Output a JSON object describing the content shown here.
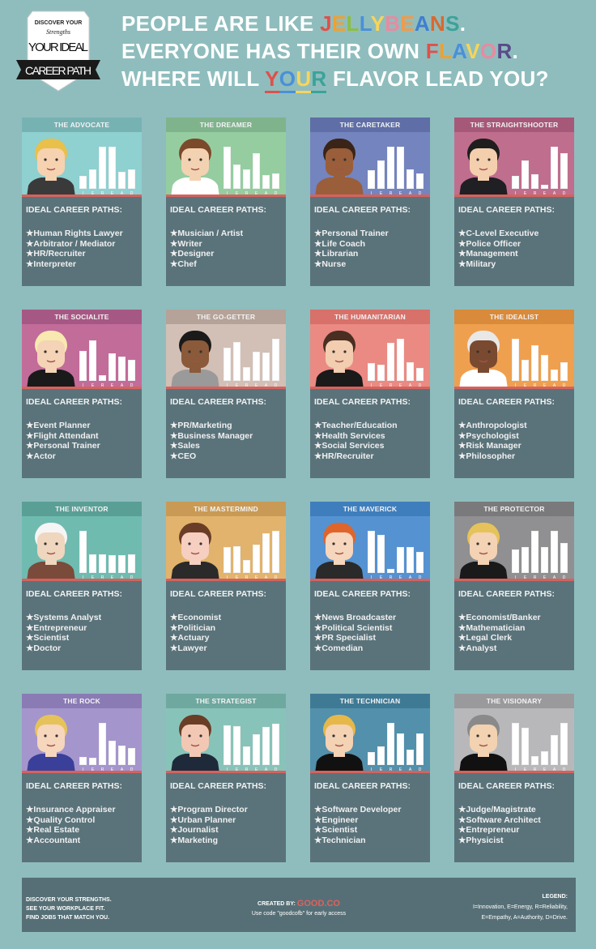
{
  "badge": {
    "line1": "DISCOVER YOUR",
    "line2": "Strengths",
    "line3": "YOUR IDEAL",
    "line4": "CAREER PATH"
  },
  "title": {
    "lines": [
      [
        {
          "text": "PEOPLE ARE LIKE "
        },
        {
          "text": "J",
          "color": "#e0504a"
        },
        {
          "text": "E",
          "color": "#f0a030"
        },
        {
          "text": "L",
          "color": "#8cbf3f"
        },
        {
          "text": "L",
          "color": "#4a90d9"
        },
        {
          "text": "Y",
          "color": "#f6d55a"
        },
        {
          "text": "B",
          "color": "#e88aa0"
        },
        {
          "text": "E",
          "color": "#f29a4a"
        },
        {
          "text": "A",
          "color": "#3f7fd0"
        },
        {
          "text": "N",
          "color": "#d9692f"
        },
        {
          "text": "S",
          "color": "#3aa39a"
        },
        {
          "text": "."
        }
      ],
      [
        {
          "text": "EVERYONE HAS THEIR OWN "
        },
        {
          "text": "F",
          "color": "#e0504a"
        },
        {
          "text": "L",
          "color": "#f0a030"
        },
        {
          "text": "A",
          "color": "#4a90d9"
        },
        {
          "text": "V",
          "color": "#f6d55a"
        },
        {
          "text": "O",
          "color": "#e88aa0"
        },
        {
          "text": "R",
          "color": "#5a4a8a"
        },
        {
          "text": "."
        }
      ],
      [
        {
          "text": "WHERE WILL "
        },
        {
          "text": "Y",
          "color": "#e0504a",
          "underline": true
        },
        {
          "text": "O",
          "color": "#4a90d9",
          "underline": true
        },
        {
          "text": "U",
          "color": "#f6d55a",
          "underline": true
        },
        {
          "text": "R",
          "color": "#3aa39a",
          "underline": true
        },
        {
          "text": " FLAVOR LEAD YOU?"
        }
      ]
    ]
  },
  "section_heading": "IDEAL CAREER PATHS:",
  "bar_labels": [
    "I",
    "E",
    "R",
    "E",
    "A",
    "D"
  ],
  "colors": {
    "background": "#8fbdbd",
    "card_body": "#5a737a",
    "divider": "#d6625d"
  },
  "cards": [
    {
      "name": "THE ADVOCATE",
      "header": "#77b2b3",
      "bg": "#8fd0d0",
      "bars": [
        30,
        47,
        100,
        100,
        40,
        47
      ],
      "careers": [
        "Human Rights Lawyer",
        "Arbitrator / Mediator",
        "HR/Recruiter",
        "Interpreter"
      ],
      "avatar": {
        "hair": "#e8c04a",
        "skin": "#f6d2b0",
        "shirt": "#3a3a3a"
      }
    },
    {
      "name": "THE DREAMER",
      "header": "#7fb38c",
      "bg": "#95cda0",
      "bars": [
        100,
        57,
        47,
        85,
        33,
        37
      ],
      "careers": [
        "Musician / Artist",
        "Writer",
        "Designer",
        "Chef"
      ],
      "avatar": {
        "hair": "#7a4a2a",
        "skin": "#f3d2b2",
        "shirt": "#ffffff"
      }
    },
    {
      "name": "THE CARETAKER",
      "header": "#5f6ea6",
      "bg": "#7484be",
      "bars": [
        45,
        68,
        100,
        100,
        47,
        37
      ],
      "careers": [
        "Personal Trainer",
        "Life Coach",
        "Librarian",
        "Nurse"
      ],
      "avatar": {
        "hair": "#3a2418",
        "skin": "#9a5e3a",
        "shirt": "#9a5e3a"
      }
    },
    {
      "name": "THE STRAIGHTSHOOTER",
      "header": "#a65878",
      "bg": "#c06e8e",
      "bars": [
        30,
        68,
        35,
        10,
        100,
        85
      ],
      "careers": [
        "C-Level Executive",
        "Police Officer",
        "Management",
        "Military"
      ],
      "avatar": {
        "hair": "#1e1e1e",
        "skin": "#f4cfae",
        "shirt": "#1f1f24"
      }
    },
    {
      "name": "THE SOCIALITE",
      "header": "#a65884",
      "bg": "#c26c9a",
      "bars": [
        72,
        97,
        13,
        65,
        57,
        50
      ],
      "careers": [
        "Event Planner",
        "Flight Attendant",
        "Personal Trainer",
        "Actor"
      ],
      "avatar": {
        "hair": "#f7e9b0",
        "skin": "#f4d3b6",
        "shirt": "#1a1a1a"
      }
    },
    {
      "name": "THE GO-GETTER",
      "header": "#b5a298",
      "bg": "#d2bfb5",
      "bars": [
        78,
        92,
        32,
        70,
        67,
        100
      ],
      "careers": [
        "PR/Marketing",
        "Business Manager",
        "Sales",
        "CEO"
      ],
      "avatar": {
        "hair": "#1a1a1a",
        "skin": "#8a5a3a",
        "shirt": "#9a9a9a"
      }
    },
    {
      "name": "THE HUMANITARIAN",
      "header": "#d7716a",
      "bg": "#ea8a83",
      "bars": [
        42,
        38,
        90,
        100,
        45,
        30
      ],
      "careers": [
        "Teacher/Education",
        "Health Services",
        "Social Services",
        "HR/Recruiter"
      ],
      "avatar": {
        "hair": "#4a2e22",
        "skin": "#f2cdb0",
        "shirt": "#1a1a1a"
      }
    },
    {
      "name": "THE IDEALIST",
      "header": "#d98a3a",
      "bg": "#efa04f",
      "bars": [
        100,
        50,
        85,
        62,
        27,
        45
      ],
      "careers": [
        "Anthropologist",
        "Psychologist",
        "Risk Manager",
        "Philosopher"
      ],
      "avatar": {
        "hair": "#e8e8e8",
        "skin": "#7a4a30",
        "shirt": "#ffffff"
      }
    },
    {
      "name": "THE INVENTOR",
      "header": "#5a9f96",
      "bg": "#6fbbb0",
      "bars": [
        100,
        45,
        45,
        42,
        42,
        45
      ],
      "careers": [
        "Systems Analyst",
        "Entrepreneur",
        "Scientist",
        "Doctor"
      ],
      "avatar": {
        "hair": "#f5f5f5",
        "skin": "#efd6be",
        "shirt": "#7a4a3a"
      }
    },
    {
      "name": "THE MASTERMIND",
      "header": "#c99a55",
      "bg": "#e2b36c",
      "bars": [
        62,
        63,
        30,
        67,
        95,
        100
      ],
      "careers": [
        "Economist",
        "Politician",
        "Actuary",
        "Lawyer"
      ],
      "avatar": {
        "hair": "#6a3e26",
        "skin": "#f6cfc0",
        "shirt": "#2a2a2a"
      }
    },
    {
      "name": "THE MAVERICK",
      "header": "#3f7ebd",
      "bg": "#5592d2",
      "bars": [
        100,
        90,
        10,
        62,
        62,
        50
      ],
      "careers": [
        "News Broadcaster",
        "Political Scientist",
        "PR Specialist",
        "Comedian"
      ],
      "avatar": {
        "hair": "#e0652a",
        "skin": "#f6d6bc",
        "shirt": "#2a2a2a"
      }
    },
    {
      "name": "THE PROTECTOR",
      "header": "#7a7a7c",
      "bg": "#909092",
      "bars": [
        55,
        62,
        100,
        62,
        100,
        72
      ],
      "careers": [
        "Economist/Banker",
        "Mathematician",
        "Legal Clerk",
        "Analyst"
      ],
      "avatar": {
        "hair": "#e6c35a",
        "skin": "#f4d2b4",
        "shirt": "#1a1a1a"
      }
    },
    {
      "name": "THE ROCK",
      "header": "#8a7bb5",
      "bg": "#a495cd",
      "bars": [
        20,
        18,
        100,
        57,
        47,
        40
      ],
      "careers": [
        "Insurance Appraiser",
        "Quality Control",
        "Real Estate",
        "Accountant"
      ],
      "avatar": {
        "hair": "#e6c35a",
        "skin": "#f6d6bc",
        "shirt": "#3a3f9a"
      }
    },
    {
      "name": "THE STRATEGIST",
      "header": "#6ea89f",
      "bg": "#88c3b9",
      "bars": [
        95,
        92,
        45,
        73,
        90,
        98
      ],
      "careers": [
        "Program Director",
        "Urban Planner",
        "Journalist",
        "Marketing"
      ],
      "avatar": {
        "hair": "#6a3e26",
        "skin": "#f2c8b4",
        "shirt": "#1e2a3a"
      }
    },
    {
      "name": "THE TECHNICIAN",
      "header": "#3f7a95",
      "bg": "#5290ac",
      "bars": [
        30,
        45,
        100,
        75,
        37,
        75
      ],
      "careers": [
        "Software Developer",
        "Engineer",
        "Scientist",
        "Technician"
      ],
      "avatar": {
        "hair": "#e6b84a",
        "skin": "#f4d2b4",
        "shirt": "#111111"
      }
    },
    {
      "name": "THE VISIONARY",
      "header": "#9a9a9d",
      "bg": "#b8b8bb",
      "bars": [
        100,
        88,
        22,
        32,
        72,
        100
      ],
      "careers": [
        "Judge/Magistrate",
        "Software Architect",
        "Entrepreneur",
        "Physicist"
      ],
      "avatar": {
        "hair": "#8a8a8a",
        "skin": "#f2d2b0",
        "shirt": "#111111"
      }
    }
  ],
  "footer": {
    "left": [
      "DISCOVER YOUR STRENGTHS.",
      "SEE YOUR WORKPLACE FIT.",
      "FIND JOBS THAT MATCH YOU."
    ],
    "created_by": "CREATED BY:",
    "logo": "GOOD.CO",
    "promo": "Use code \"goodcofb\" for early access",
    "legend_title": "LEGEND:",
    "legend_lines": [
      "I=Innovation, E=Energy, R=Reliability,",
      "E=Empathy, A=Authority, D=Drive."
    ]
  }
}
